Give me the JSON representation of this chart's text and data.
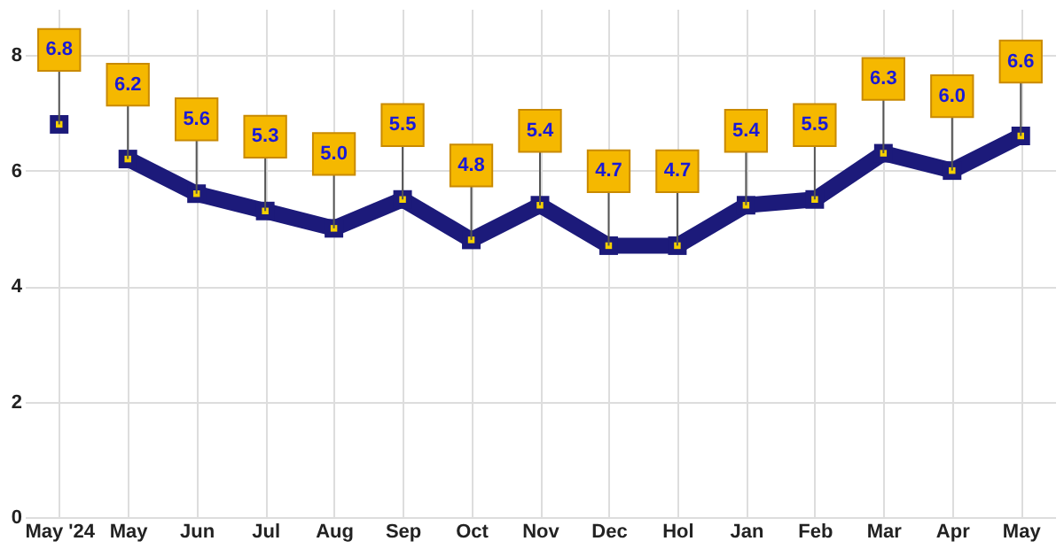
{
  "chart_data": {
    "type": "line",
    "categories": [
      "May '24",
      "May",
      "Jun",
      "Jul",
      "Aug",
      "Sep",
      "Oct",
      "Nov",
      "Dec",
      "Hol",
      "Jan",
      "Feb",
      "Mar",
      "Apr",
      "May"
    ],
    "series": [
      {
        "color": "#1c1a7a",
        "values": [
          6.8,
          null,
          null,
          null,
          null,
          null,
          null,
          null,
          null,
          null,
          null,
          null,
          null,
          null,
          null
        ]
      },
      {
        "color": "#1c1a7a",
        "values": [
          null,
          6.2,
          5.6,
          5.3,
          5.0,
          5.5,
          4.8,
          5.4,
          4.7,
          4.7,
          5.4,
          5.5,
          6.3,
          6.0,
          6.6
        ]
      }
    ],
    "value_labels": [
      "6.8",
      "6.2",
      "5.6",
      "5.3",
      "5.0",
      "5.5",
      "4.8",
      "5.4",
      "4.7",
      "4.7",
      "5.4",
      "5.5",
      "6.3",
      "6.0",
      "6.6"
    ],
    "ylim": [
      0,
      8.8
    ],
    "yticks": [
      0,
      2,
      4,
      6,
      8
    ],
    "grid": true,
    "marker": "square"
  }
}
